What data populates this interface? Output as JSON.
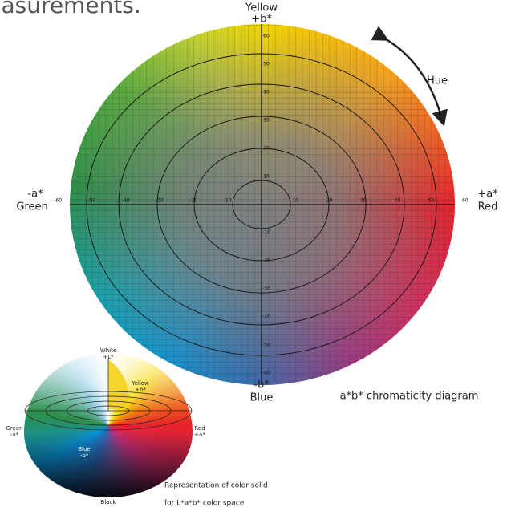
{
  "header": {
    "title": "easurements."
  },
  "diagram": {
    "top": {
      "name": "Yellow",
      "sign": "+b*"
    },
    "bottom": {
      "name": "Blue",
      "sign": "-b*"
    },
    "left": {
      "name": "Green",
      "sign": "-a*"
    },
    "right": {
      "name": "Red",
      "sign": "+a*"
    },
    "a_ticks": [
      -60,
      -50,
      -40,
      -30,
      -20,
      -10,
      10,
      20,
      30,
      40,
      50,
      60
    ],
    "b_ticks": [
      -60,
      -50,
      -40,
      -30,
      -20,
      -10,
      10,
      20,
      30,
      40,
      50,
      60
    ],
    "hue": "Hue",
    "caption": "a*b* chromaticity diagram"
  },
  "solid": {
    "top": {
      "name": "White",
      "sign": "+L*"
    },
    "yellow": {
      "name": "Yellow",
      "sign": "+b*"
    },
    "green": {
      "name": "Green",
      "sign": "-a*"
    },
    "red": {
      "name": "Red",
      "sign": "+a*"
    },
    "blue": {
      "name": "Blue",
      "sign": "-b*"
    },
    "bottom": {
      "name": "Black"
    },
    "caption": [
      "Representation of color solid",
      "for L*a*b* color space"
    ]
  }
}
